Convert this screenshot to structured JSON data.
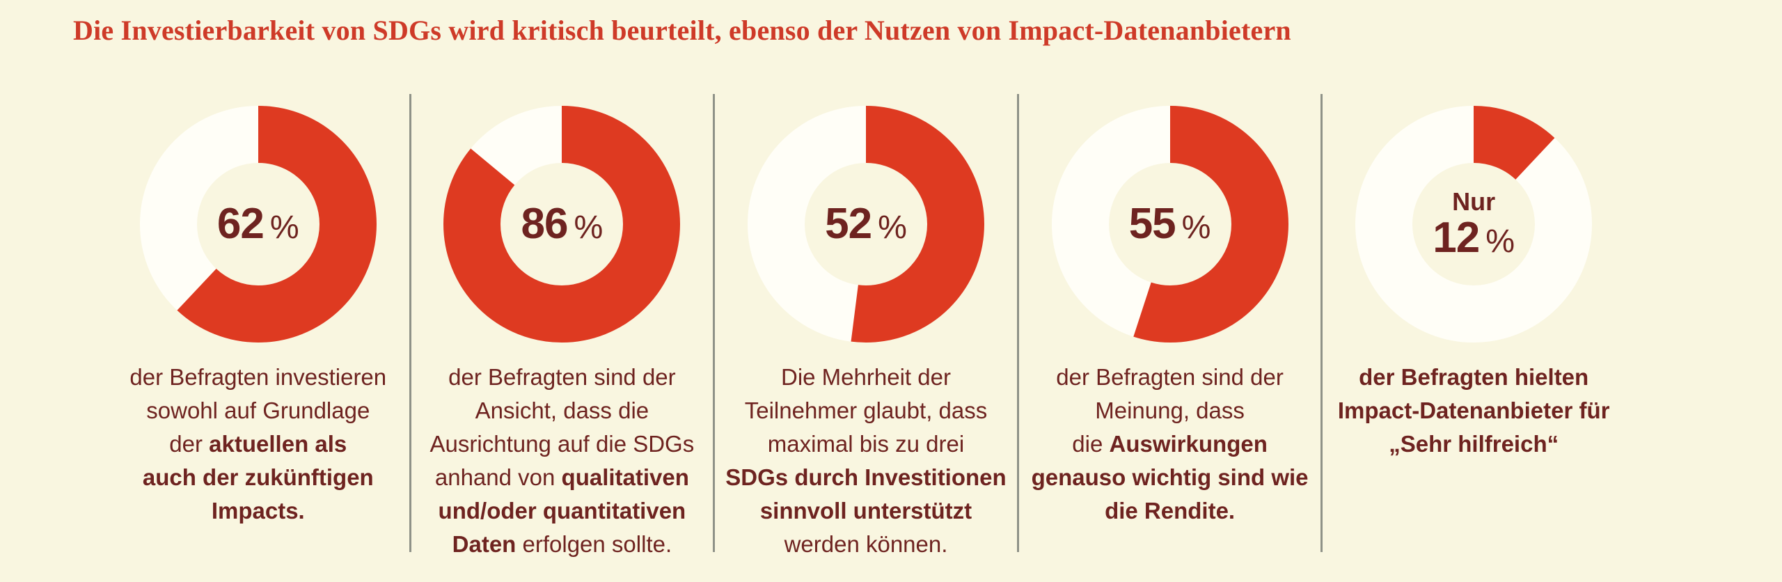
{
  "title": "Die Investierbarkeit von SDGs wird kritisch beurteilt, ebenso der Nutzen von Impact-Datenanbietern",
  "colors": {
    "background": "#f9f6e0",
    "donut_red": "#de3a21",
    "donut_remainder": "#fffef7",
    "text_maroon": "#6e2320",
    "title_red": "#ce3a28",
    "divider_gray": "#8f9288"
  },
  "chart_data": {
    "type": "donut",
    "unit": "%",
    "start_angle_deg": 0,
    "direction": "clockwise",
    "legend": "none",
    "series": [
      {
        "value": 62,
        "center_prefix": "",
        "center_number": "62",
        "center_unit": "%",
        "description_lines": [
          [
            {
              "t": "der Befragten investieren",
              "b": false
            }
          ],
          [
            {
              "t": "sowohl auf Grundlage",
              "b": false
            }
          ],
          [
            {
              "t": "der ",
              "b": false
            },
            {
              "t": "aktuellen als",
              "b": true
            }
          ],
          [
            {
              "t": "auch der zukünftigen",
              "b": true
            }
          ],
          [
            {
              "t": "Impacts.",
              "b": true
            }
          ]
        ]
      },
      {
        "value": 86,
        "center_prefix": "",
        "center_number": "86",
        "center_unit": "%",
        "description_lines": [
          [
            {
              "t": "der Befragten sind der",
              "b": false
            }
          ],
          [
            {
              "t": "Ansicht, dass die",
              "b": false
            }
          ],
          [
            {
              "t": "Ausrichtung auf die SDGs",
              "b": false
            }
          ],
          [
            {
              "t": "anhand von ",
              "b": false
            },
            {
              "t": "qualitativen",
              "b": true
            }
          ],
          [
            {
              "t": "und/oder quantitativen",
              "b": true
            }
          ],
          [
            {
              "t": "Daten",
              "b": true
            },
            {
              "t": " erfolgen sollte.",
              "b": false
            }
          ]
        ]
      },
      {
        "value": 52,
        "center_prefix": "",
        "center_number": "52",
        "center_unit": "%",
        "description_lines": [
          [
            {
              "t": "Die Mehrheit der",
              "b": false
            }
          ],
          [
            {
              "t": "Teilnehmer glaubt, dass",
              "b": false
            }
          ],
          [
            {
              "t": "maximal bis zu drei",
              "b": false
            }
          ],
          [
            {
              "t": "SDGs durch Investitionen",
              "b": true
            }
          ],
          [
            {
              "t": "sinnvoll unterstützt",
              "b": true
            }
          ],
          [
            {
              "t": "werden können.",
              "b": false
            }
          ]
        ]
      },
      {
        "value": 55,
        "center_prefix": "",
        "center_number": "55",
        "center_unit": "%",
        "description_lines": [
          [
            {
              "t": "der Befragten sind der",
              "b": false
            }
          ],
          [
            {
              "t": "Meinung, dass",
              "b": false
            }
          ],
          [
            {
              "t": "die ",
              "b": false
            },
            {
              "t": "Auswirkungen",
              "b": true
            }
          ],
          [
            {
              "t": "genauso wichtig sind wie",
              "b": true
            }
          ],
          [
            {
              "t": "die Rendite.",
              "b": true
            }
          ]
        ]
      },
      {
        "value": 12,
        "center_prefix": "Nur",
        "center_number": "12",
        "center_unit": "%",
        "description_lines": [
          [
            {
              "t": "der Befragten hielten",
              "b": true
            }
          ],
          [
            {
              "t": "Impact-Datenanbieter für",
              "b": true
            }
          ],
          [
            {
              "t": "„Sehr hilfreich“",
              "b": true
            }
          ]
        ]
      }
    ]
  }
}
